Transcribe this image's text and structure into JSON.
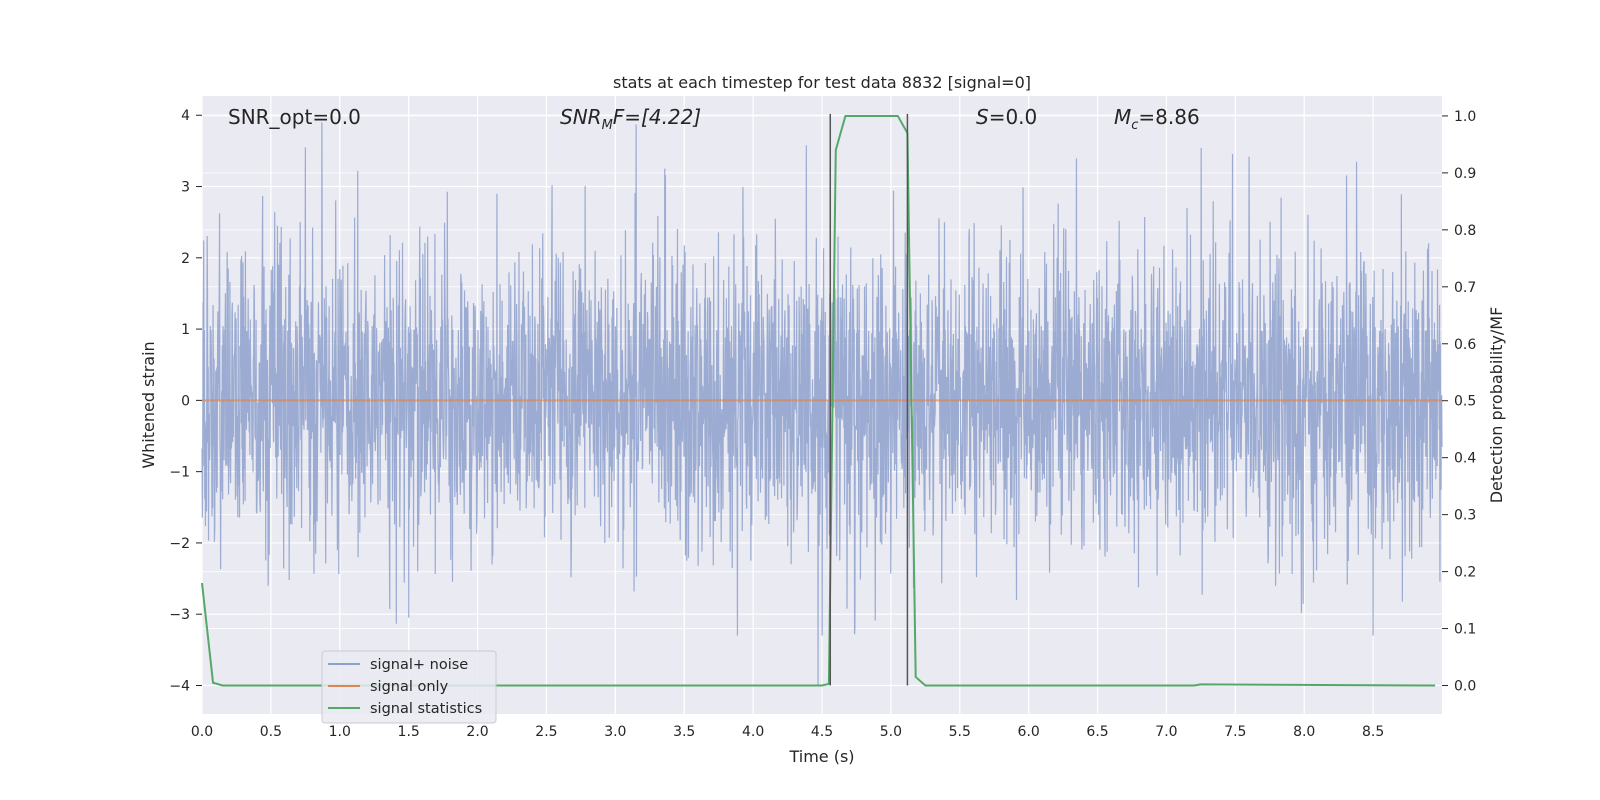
{
  "chart_data": {
    "type": "line",
    "title": "stats at each timestep for test data 8832 [signal=0]",
    "xlabel": "Time (s)",
    "ylabel_left": "Whitened strain",
    "ylabel_right": "Detection probability/MF",
    "xlim": [
      0,
      9
    ],
    "ylim_left": [
      -4.4,
      4.27
    ],
    "ylim_right": [
      -0.05,
      1.035
    ],
    "x_ticks": [
      0.0,
      0.5,
      1.0,
      1.5,
      2.0,
      2.5,
      3.0,
      3.5,
      4.0,
      4.5,
      5.0,
      5.5,
      6.0,
      6.5,
      7.0,
      7.5,
      8.0,
      8.5
    ],
    "x_tick_labels": [
      "0.0",
      "0.5",
      "1.0",
      "1.5",
      "2.0",
      "2.5",
      "3.0",
      "3.5",
      "4.0",
      "4.5",
      "5.0",
      "5.5",
      "6.0",
      "6.5",
      "7.0",
      "7.5",
      "8.0",
      "8.5"
    ],
    "y_left_ticks": [
      4,
      3,
      2,
      1,
      0,
      -1,
      -2,
      -3,
      -4
    ],
    "y_left_tick_labels": [
      "4",
      "3",
      "2",
      "1",
      "0",
      "−1",
      "−2",
      "−3",
      "−4"
    ],
    "y_right_ticks": [
      1.0,
      0.9,
      0.8,
      0.7,
      0.6,
      0.5,
      0.4,
      0.3,
      0.2,
      0.1,
      0.0
    ],
    "y_right_tick_labels": [
      "1.0",
      "0.9",
      "0.8",
      "0.7",
      "0.6",
      "0.5",
      "0.4",
      "0.3",
      "0.2",
      "0.1",
      "0.0"
    ],
    "grid": true,
    "legend_position": "lower-left",
    "annotations": {
      "snr_opt": "SNR_opt=0.0",
      "snr_mf_base": "SNR",
      "snr_mf_sub": "M",
      "snr_mf_rest": "F=[4.22]",
      "s_base": "S",
      "s_rest": "=0.0",
      "mc_base": "M",
      "mc_sub": "c",
      "mc_rest": "=8.86"
    },
    "vlines": [
      4.56,
      5.12
    ],
    "series": [
      {
        "name": "signal+ noise",
        "axis": "left",
        "color": "#8da0cb",
        "description_range": [
          -3.3,
          3.9
        ],
        "peaks": [
          {
            "x": 0.75,
            "y": 3.55
          },
          {
            "x": 1.13,
            "y": 3.22
          },
          {
            "x": 3.15,
            "y": 3.87
          },
          {
            "x": 7.6,
            "y": 3.42
          },
          {
            "x": 8.38,
            "y": 3.35
          },
          {
            "x": 4.47,
            "y": -4.0
          },
          {
            "x": 8.5,
            "y": -3.3
          },
          {
            "x": 1.5,
            "y": -3.05
          }
        ]
      },
      {
        "name": "signal only",
        "axis": "left",
        "color": "#dd8452",
        "x": [
          0,
          9
        ],
        "y": [
          0,
          0
        ]
      },
      {
        "name": "signal statistics",
        "axis": "right",
        "color": "#55a868",
        "x": [
          0.0,
          0.08,
          0.15,
          4.5,
          4.55,
          4.6,
          4.67,
          4.73,
          4.8,
          5.05,
          5.12,
          5.18,
          5.25,
          7.2,
          7.25,
          8.95
        ],
        "y": [
          0.18,
          0.005,
          0.0,
          0.0,
          0.003,
          0.94,
          1.0,
          1.0,
          1.0,
          1.0,
          0.97,
          0.015,
          0.0,
          0.0,
          0.002,
          0.0
        ]
      }
    ]
  }
}
